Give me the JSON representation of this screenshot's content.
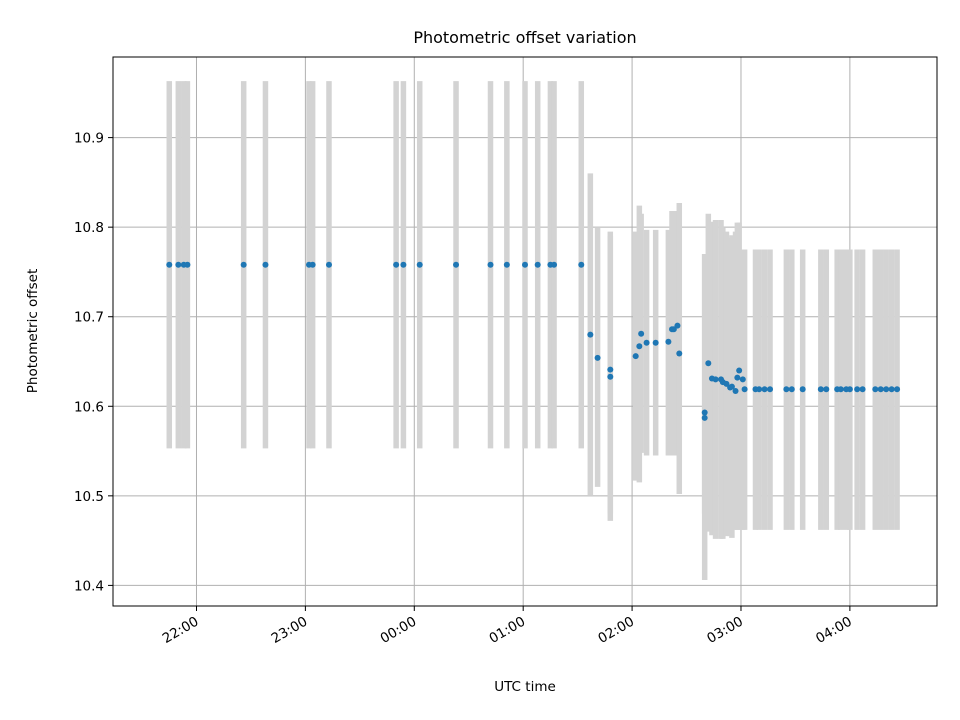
{
  "chart_data": {
    "type": "scatter",
    "title": "Photometric offset variation",
    "xlabel": "UTC time",
    "ylabel": "Photometric offset",
    "ylim": [
      10.377,
      10.99
    ],
    "xlim": [
      "21:14",
      "04:48"
    ],
    "x_ticks": [
      "22:00",
      "23:00",
      "00:00",
      "01:00",
      "02:00",
      "03:00",
      "04:00"
    ],
    "y_ticks": [
      "10.4",
      "10.5",
      "10.6",
      "10.7",
      "10.8",
      "10.9"
    ],
    "grid": true,
    "marker_color": "#1f77b4",
    "errorbar_color": "#d3d3d3",
    "series": [
      {
        "x": [
          "21:45",
          "21:50",
          "21:53",
          "21:55",
          "22:26",
          "22:38",
          "23:02",
          "23:04",
          "23:13",
          "23:50",
          "23:54",
          "00:03",
          "00:23",
          "00:42",
          "00:51",
          "01:01",
          "01:08",
          "01:15",
          "01:17",
          "01:32",
          "01:37",
          "01:41",
          "01:48",
          "01:48",
          "02:02",
          "02:04",
          "02:05",
          "02:08",
          "02:13",
          "02:20",
          "02:22",
          "02:23",
          "02:25",
          "02:26",
          "02:40",
          "02:40",
          "02:42",
          "02:44",
          "02:46",
          "02:49",
          "02:50",
          "02:52",
          "02:54",
          "02:55",
          "02:57",
          "02:58",
          "02:59",
          "03:01",
          "03:02",
          "03:08",
          "03:10",
          "03:13",
          "03:16",
          "03:25",
          "03:28",
          "03:34",
          "03:44",
          "03:47",
          "03:53",
          "03:55",
          "03:58",
          "04:00",
          "04:04",
          "04:07",
          "04:14",
          "04:17",
          "04:20",
          "04:23",
          "04:26"
        ],
        "y": [
          10.758,
          10.758,
          10.758,
          10.758,
          10.758,
          10.758,
          10.758,
          10.758,
          10.758,
          10.758,
          10.758,
          10.758,
          10.758,
          10.758,
          10.758,
          10.758,
          10.758,
          10.758,
          10.758,
          10.758,
          10.68,
          10.654,
          10.633,
          10.641,
          10.656,
          10.667,
          10.681,
          10.671,
          10.671,
          10.672,
          10.686,
          10.686,
          10.69,
          10.659,
          10.593,
          10.587,
          10.648,
          10.631,
          10.63,
          10.63,
          10.627,
          10.625,
          10.621,
          10.622,
          10.617,
          10.632,
          10.64,
          10.63,
          10.619,
          10.619,
          10.619,
          10.619,
          10.619,
          10.619,
          10.619,
          10.619,
          10.619,
          10.619,
          10.619,
          10.619,
          10.619,
          10.619,
          10.619,
          10.619,
          10.619,
          10.619,
          10.619,
          10.619,
          10.619
        ],
        "yerr_low": [
          10.553,
          10.553,
          10.553,
          10.553,
          10.553,
          10.553,
          10.553,
          10.553,
          10.553,
          10.553,
          10.553,
          10.553,
          10.553,
          10.553,
          10.553,
          10.553,
          10.553,
          10.553,
          10.553,
          10.553,
          10.5,
          10.51,
          10.472,
          10.48,
          10.517,
          10.515,
          10.548,
          10.545,
          10.545,
          10.545,
          10.545,
          10.545,
          10.545,
          10.502,
          10.406,
          10.48,
          10.46,
          10.456,
          10.452,
          10.452,
          10.452,
          10.455,
          10.455,
          10.453,
          10.462,
          10.462,
          10.462,
          10.462,
          10.462,
          10.462,
          10.462,
          10.462,
          10.462,
          10.462,
          10.462,
          10.462,
          10.462,
          10.462,
          10.462,
          10.462,
          10.462,
          10.462,
          10.462,
          10.462,
          10.462,
          10.462,
          10.462,
          10.462,
          10.462
        ],
        "yerr_high": [
          10.963,
          10.963,
          10.963,
          10.963,
          10.963,
          10.963,
          10.963,
          10.963,
          10.963,
          10.963,
          10.963,
          10.963,
          10.963,
          10.963,
          10.963,
          10.963,
          10.963,
          10.963,
          10.963,
          10.963,
          10.86,
          10.8,
          10.795,
          10.79,
          10.795,
          10.824,
          10.815,
          10.797,
          10.797,
          10.797,
          10.818,
          10.818,
          10.818,
          10.827,
          10.77,
          10.77,
          10.815,
          10.806,
          10.808,
          10.808,
          10.8,
          10.795,
          10.788,
          10.791,
          10.795,
          10.805,
          10.805,
          10.775,
          10.775,
          10.775,
          10.775,
          10.775,
          10.775,
          10.775,
          10.775,
          10.775,
          10.775,
          10.775,
          10.775,
          10.775,
          10.775,
          10.775,
          10.775,
          10.775,
          10.775,
          10.775,
          10.775,
          10.775,
          10.775
        ]
      }
    ]
  }
}
